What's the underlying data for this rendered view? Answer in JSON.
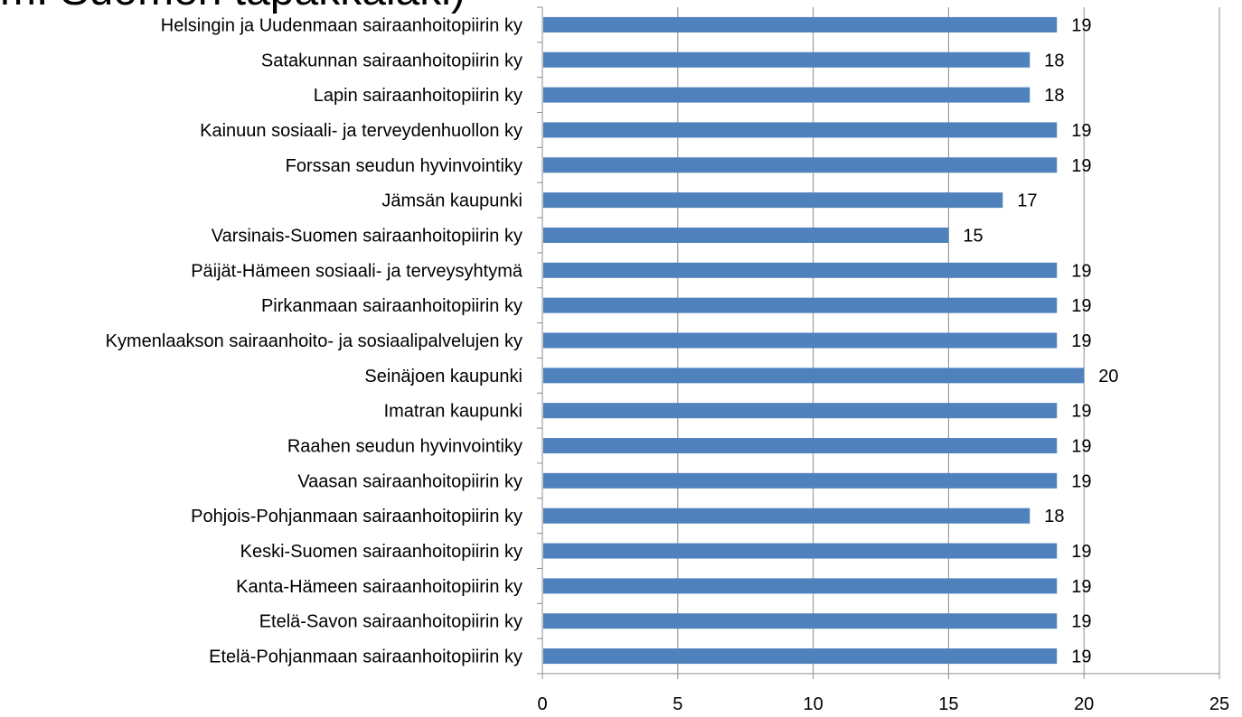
{
  "slide": {
    "title_fragment": "m. Suomen tapakkalaki)"
  },
  "chart_data": {
    "type": "bar",
    "orientation": "horizontal",
    "categories": [
      "Helsingin ja Uudenmaan sairaanhoitopiirin ky",
      "Satakunnan sairaanhoitopiirin ky",
      "Lapin sairaanhoitopiirin ky",
      "Kainuun sosiaali- ja terveydenhuollon ky",
      "Forssan seudun hyvinvointiky",
      "Jämsän kaupunki",
      "Varsinais-Suomen sairaanhoitopiirin ky",
      "Päijät-Hämeen sosiaali- ja terveysyhtymä",
      "Pirkanmaan sairaanhoitopiirin ky",
      "Kymenlaakson sairaanhoito- ja sosiaalipalvelujen ky",
      "Seinäjoen kaupunki",
      "Imatran kaupunki",
      "Raahen seudun hyvinvointiky",
      "Vaasan sairaanhoitopiirin ky",
      "Pohjois-Pohjanmaan sairaanhoitopiirin ky",
      "Keski-Suomen sairaanhoitopiirin ky",
      "Kanta-Hämeen sairaanhoitopiirin ky",
      "Etelä-Savon sairaanhoitopiirin ky",
      "Etelä-Pohjanmaan sairaanhoitopiirin ky"
    ],
    "values": [
      19,
      18,
      18,
      19,
      19,
      17,
      15,
      19,
      19,
      19,
      20,
      19,
      19,
      19,
      18,
      19,
      19,
      19,
      19
    ],
    "xlim": [
      0,
      25
    ],
    "x_ticks": [
      0,
      5,
      10,
      15,
      20,
      25
    ],
    "grid": "vertical",
    "legend": "none",
    "data_labels": true,
    "colors": {
      "bar": "#4F81BD",
      "grid": "#8C8C8C",
      "axis": "#8C8C8C",
      "text": "#000000"
    }
  }
}
